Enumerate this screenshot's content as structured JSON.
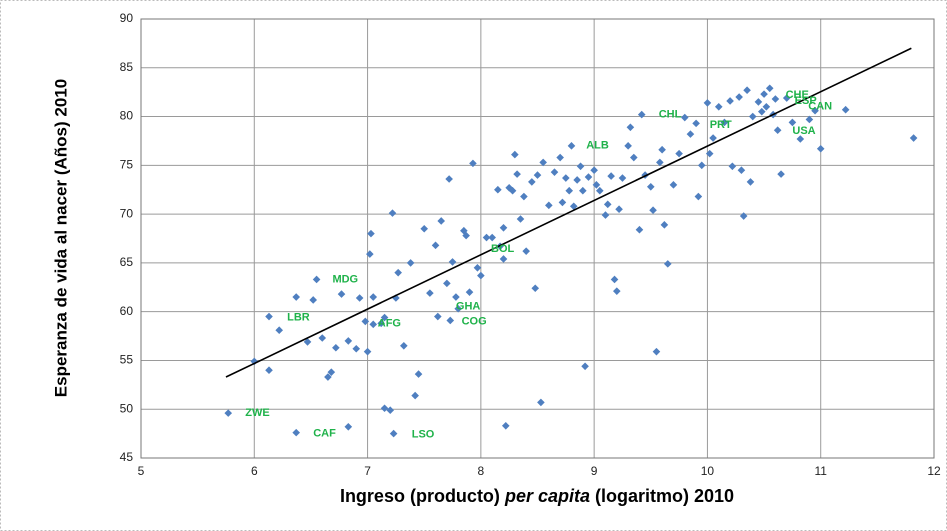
{
  "chart_data": {
    "type": "scatter",
    "x_label_parts": [
      "Ingreso (producto)",
      "per capita",
      "(logaritmo) 2010"
    ],
    "y_label": "Esperanza de vida al nacer (Años) 2010",
    "xlim": [
      5,
      12
    ],
    "xticks": [
      5,
      6,
      7,
      8,
      9,
      10,
      11,
      12
    ],
    "ylim": [
      45,
      90
    ],
    "yticks": [
      45,
      50,
      55,
      60,
      65,
      70,
      75,
      80,
      85,
      90
    ],
    "grid": true,
    "series": [
      {
        "color": "#4f7fc0",
        "x": [
          5.77,
          6.0,
          6.13,
          6.13,
          6.22,
          6.37,
          6.37,
          6.47,
          6.52,
          6.55,
          6.6,
          6.65,
          6.68,
          6.72,
          6.77,
          6.83,
          6.83,
          6.9,
          6.93,
          6.98,
          7.0,
          7.02,
          7.03,
          7.05,
          7.05,
          7.12,
          7.15,
          7.15,
          7.2,
          7.22,
          7.23,
          7.25,
          7.27,
          7.32,
          7.38,
          7.42,
          7.45,
          7.5,
          7.55,
          7.6,
          7.62,
          7.65,
          7.7,
          7.72,
          7.73,
          7.75,
          7.78,
          7.8,
          7.85,
          7.87,
          7.9,
          7.93,
          7.97,
          8.0,
          8.05,
          8.1,
          8.15,
          8.17,
          8.2,
          8.2,
          8.22,
          8.25,
          8.28,
          8.3,
          8.32,
          8.35,
          8.38,
          8.4,
          8.45,
          8.48,
          8.5,
          8.53,
          8.55,
          8.6,
          8.65,
          8.7,
          8.72,
          8.75,
          8.78,
          8.8,
          8.82,
          8.85,
          8.88,
          8.9,
          8.92,
          8.95,
          9.0,
          9.02,
          9.05,
          9.1,
          9.12,
          9.15,
          9.18,
          9.2,
          9.22,
          9.25,
          9.3,
          9.32,
          9.35,
          9.4,
          9.42,
          9.45,
          9.5,
          9.52,
          9.55,
          9.58,
          9.6,
          9.62,
          9.65,
          9.7,
          9.75,
          9.8,
          9.85,
          9.9,
          9.92,
          9.95,
          10.0,
          10.02,
          10.05,
          10.1,
          10.15,
          10.2,
          10.22,
          10.28,
          10.3,
          10.32,
          10.35,
          10.38,
          10.4,
          10.45,
          10.48,
          10.5,
          10.52,
          10.55,
          10.58,
          10.6,
          10.62,
          10.65,
          10.7,
          10.75,
          10.82,
          10.9,
          10.95,
          11.0,
          11.22,
          11.82
        ],
        "y": [
          49.6,
          54.9,
          59.5,
          54.0,
          58.1,
          61.5,
          47.6,
          56.9,
          61.2,
          63.3,
          57.3,
          53.3,
          53.8,
          56.3,
          61.8,
          57.0,
          48.2,
          56.2,
          61.4,
          59.0,
          55.9,
          65.9,
          68.0,
          58.7,
          61.5,
          58.8,
          59.4,
          50.1,
          49.9,
          70.1,
          47.5,
          61.4,
          64.0,
          56.5,
          65.0,
          51.4,
          53.6,
          68.5,
          61.9,
          66.8,
          59.5,
          69.3,
          62.9,
          73.6,
          59.1,
          65.1,
          61.5,
          60.3,
          68.3,
          67.8,
          62.0,
          75.2,
          64.5,
          63.7,
          67.6,
          67.6,
          72.5,
          66.7,
          68.6,
          65.4,
          48.3,
          72.7,
          72.4,
          76.1,
          74.1,
          69.5,
          71.8,
          66.2,
          73.3,
          62.4,
          74.0,
          50.7,
          75.3,
          70.9,
          74.3,
          75.8,
          71.2,
          73.7,
          72.4,
          77.0,
          70.8,
          73.5,
          74.9,
          72.4,
          54.4,
          73.8,
          74.5,
          73.0,
          72.4,
          69.9,
          71.0,
          73.9,
          63.3,
          62.1,
          70.5,
          73.7,
          77.0,
          78.9,
          75.8,
          68.4,
          80.2,
          74.0,
          72.8,
          70.4,
          55.9,
          75.3,
          76.6,
          68.9,
          64.9,
          73.0,
          76.2,
          79.9,
          78.2,
          79.3,
          71.8,
          75.0,
          81.4,
          76.2,
          77.8,
          81.0,
          79.4,
          81.6,
          74.9,
          82.0,
          74.5,
          69.8,
          82.7,
          73.3,
          80.0,
          81.5,
          80.5,
          82.3,
          81.0,
          82.9,
          80.2,
          81.8,
          78.6,
          74.1,
          81.9,
          79.4,
          77.7,
          79.7,
          80.6,
          76.7,
          80.7,
          77.8
        ]
      }
    ],
    "trendline": {
      "color": "#000000",
      "x": [
        5.75,
        11.8
      ],
      "y": [
        53.3,
        87
      ]
    },
    "annotations": [
      {
        "text": "ZWE",
        "x": 5.92,
        "y": 49.6
      },
      {
        "text": "CAF",
        "x": 6.52,
        "y": 47.5
      },
      {
        "text": "LSO",
        "x": 7.39,
        "y": 47.4
      },
      {
        "text": "LBR",
        "x": 6.29,
        "y": 59.4
      },
      {
        "text": "MDG",
        "x": 6.69,
        "y": 63.3
      },
      {
        "text": "AFG",
        "x": 7.09,
        "y": 58.8
      },
      {
        "text": "GHA",
        "x": 7.78,
        "y": 60.5
      },
      {
        "text": "COG",
        "x": 7.83,
        "y": 59.0
      },
      {
        "text": "BOL",
        "x": 8.09,
        "y": 66.4
      },
      {
        "text": "ALB",
        "x": 8.93,
        "y": 77.0
      },
      {
        "text": "CHL",
        "x": 9.57,
        "y": 80.2
      },
      {
        "text": "PRT",
        "x": 10.02,
        "y": 79.1
      },
      {
        "text": "CHE",
        "x": 10.69,
        "y": 82.2
      },
      {
        "text": "ESP",
        "x": 10.77,
        "y": 81.6
      },
      {
        "text": "CAN",
        "x": 10.89,
        "y": 81.0
      },
      {
        "text": "USA",
        "x": 10.75,
        "y": 78.5
      }
    ]
  }
}
